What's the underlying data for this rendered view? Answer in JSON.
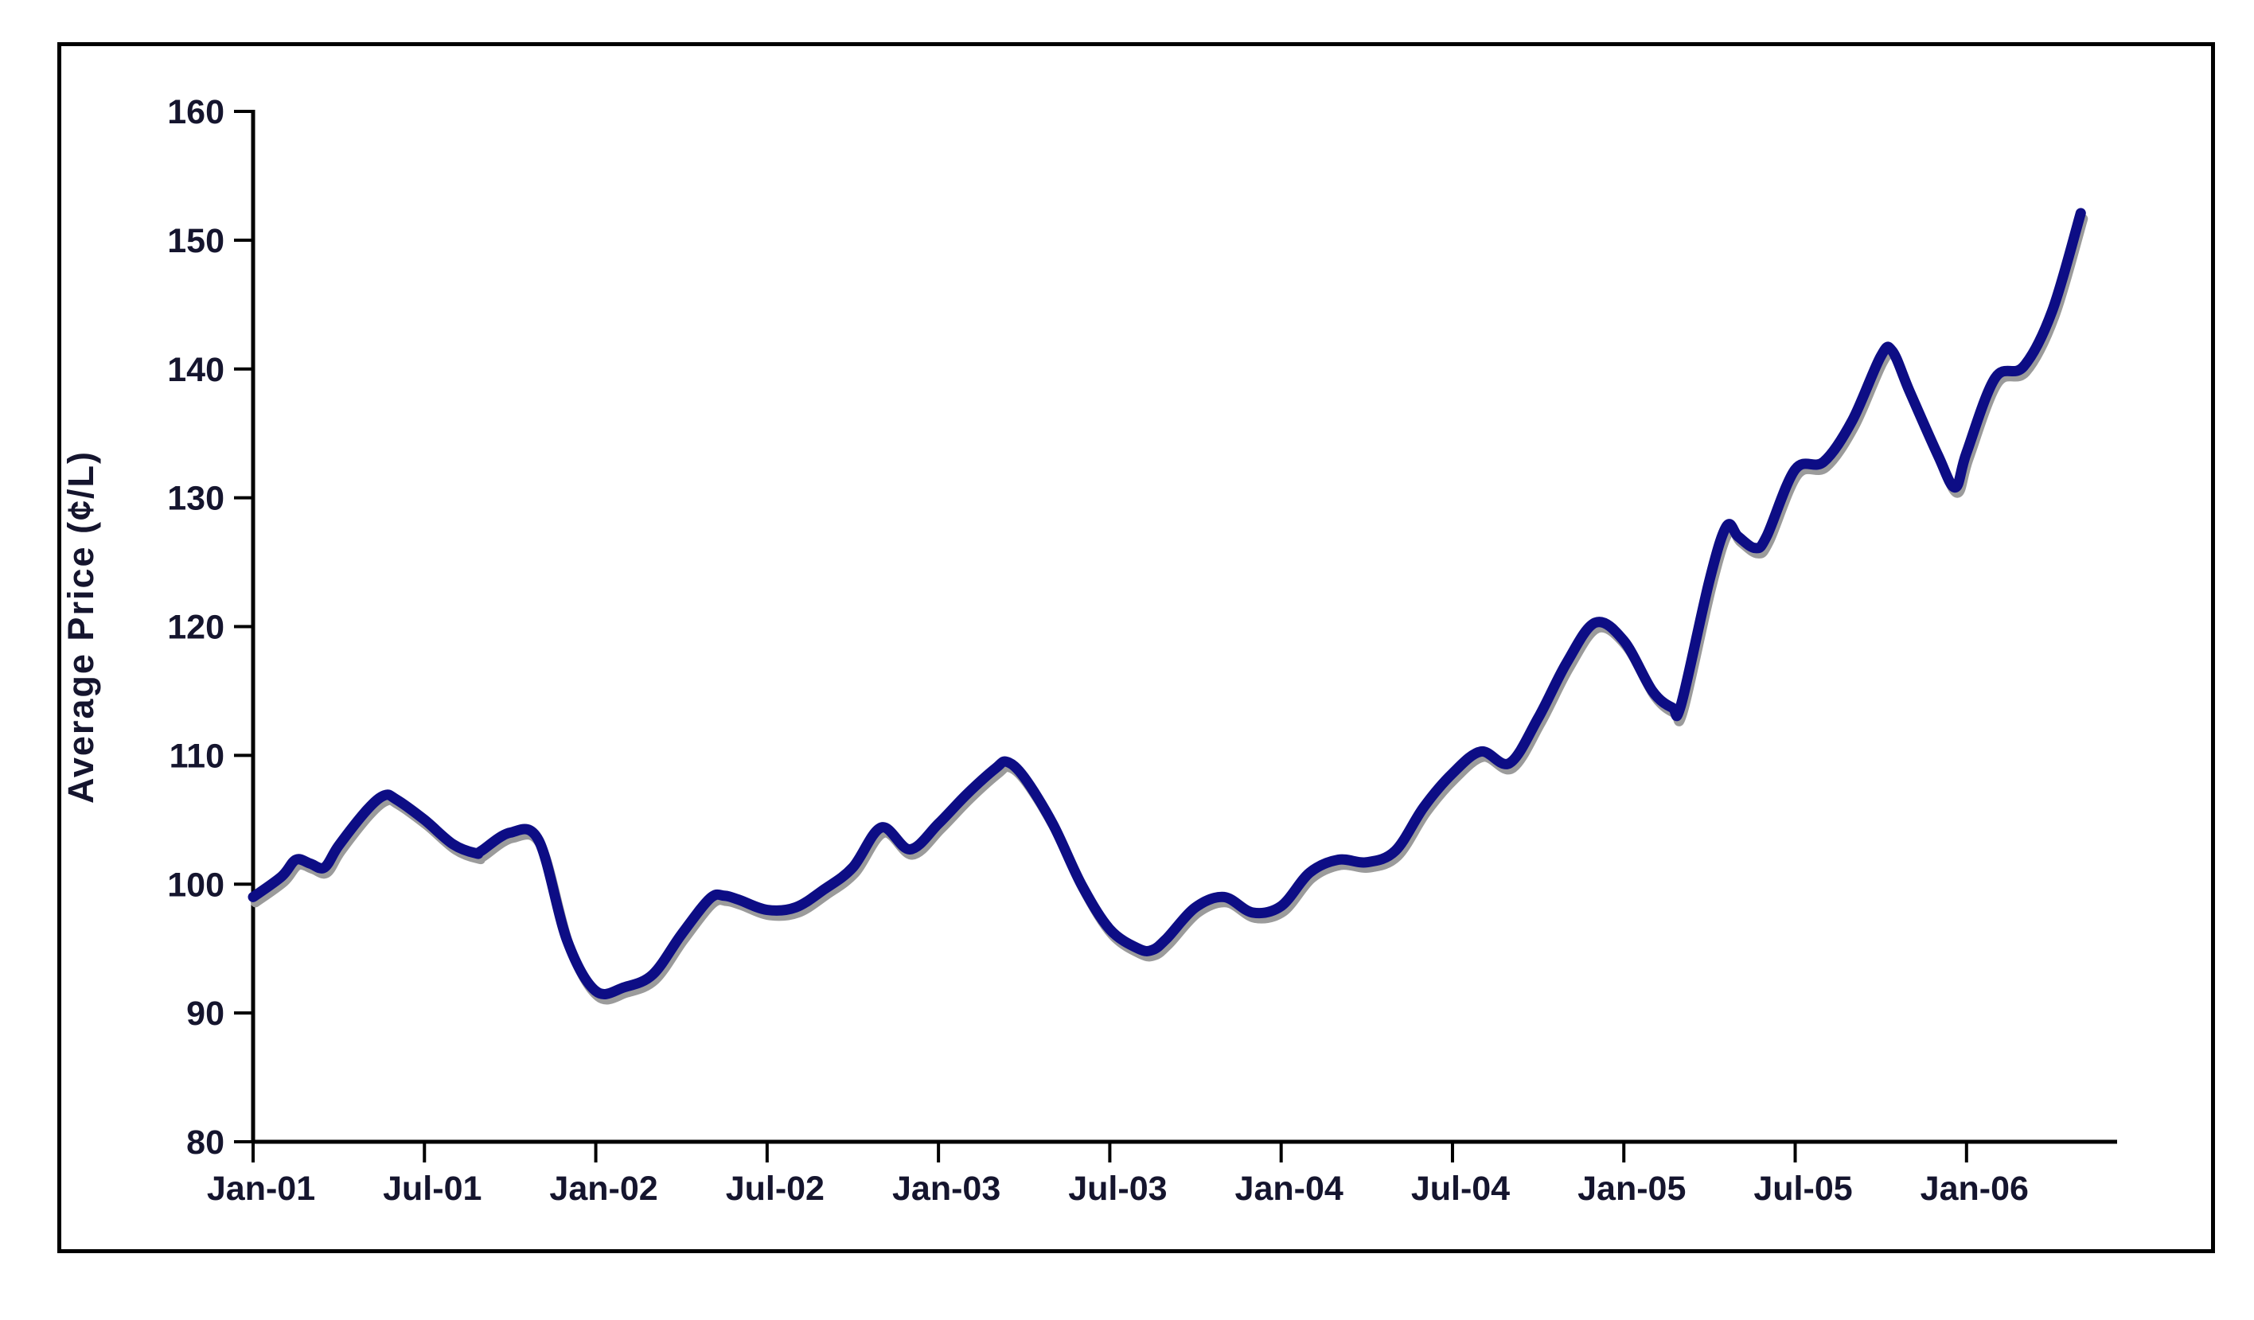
{
  "chart_data": {
    "type": "line",
    "title": "",
    "xlabel": "",
    "ylabel": "Average Price (¢/L)",
    "ylim": [
      80,
      160
    ],
    "y_ticks": [
      80,
      90,
      100,
      110,
      120,
      130,
      140,
      150,
      160
    ],
    "x_ticks": [
      {
        "month": 0,
        "label": "Jan-01"
      },
      {
        "month": 6,
        "label": "Jul-01"
      },
      {
        "month": 12,
        "label": "Jan-02"
      },
      {
        "month": 18,
        "label": "Jul-02"
      },
      {
        "month": 24,
        "label": "Jan-03"
      },
      {
        "month": 30,
        "label": "Jul-03"
      },
      {
        "month": 36,
        "label": "Jan-04"
      },
      {
        "month": 42,
        "label": "Jul-04"
      },
      {
        "month": 48,
        "label": "Jan-05"
      },
      {
        "month": 54,
        "label": "Jul-05"
      },
      {
        "month": 60,
        "label": "Jan-06"
      }
    ],
    "x_unit": "months since Jan-2001",
    "grid": false,
    "legend": "none",
    "series": [
      {
        "name": "Average Price (¢/L)",
        "color": "#0d0d85",
        "points": [
          [
            0,
            99.0
          ],
          [
            1,
            100.6
          ],
          [
            1.5,
            101.9
          ],
          [
            2,
            101.6
          ],
          [
            2.5,
            101.3
          ],
          [
            3,
            103.0
          ],
          [
            4,
            105.8
          ],
          [
            4.6,
            106.9
          ],
          [
            5,
            106.6
          ],
          [
            6,
            105.0
          ],
          [
            7,
            103.1
          ],
          [
            7.8,
            102.4
          ],
          [
            8,
            102.6
          ],
          [
            9,
            104.0
          ],
          [
            10,
            103.4
          ],
          [
            11,
            95.6
          ],
          [
            12,
            91.7
          ],
          [
            13,
            92.0
          ],
          [
            14,
            93.0
          ],
          [
            15,
            96.1
          ],
          [
            16,
            98.9
          ],
          [
            16.5,
            99.1
          ],
          [
            17,
            98.8
          ],
          [
            18,
            98.0
          ],
          [
            19,
            98.2
          ],
          [
            20,
            99.6
          ],
          [
            21,
            101.3
          ],
          [
            22,
            104.4
          ],
          [
            23,
            102.7
          ],
          [
            24,
            104.7
          ],
          [
            25,
            107.0
          ],
          [
            26,
            109.0
          ],
          [
            26.4,
            109.5
          ],
          [
            27,
            108.3
          ],
          [
            28,
            104.7
          ],
          [
            29,
            100.0
          ],
          [
            30,
            96.5
          ],
          [
            31,
            95.0
          ],
          [
            31.5,
            94.9
          ],
          [
            32,
            95.8
          ],
          [
            33,
            98.2
          ],
          [
            34,
            99.0
          ],
          [
            35,
            97.8
          ],
          [
            36,
            98.3
          ],
          [
            37,
            100.9
          ],
          [
            38,
            101.9
          ],
          [
            39,
            101.7
          ],
          [
            40,
            102.6
          ],
          [
            41,
            106.0
          ],
          [
            42,
            108.6
          ],
          [
            43,
            110.3
          ],
          [
            44,
            109.4
          ],
          [
            45,
            112.9
          ],
          [
            46,
            117.2
          ],
          [
            47,
            120.3
          ],
          [
            48,
            118.9
          ],
          [
            49,
            115.0
          ],
          [
            49.7,
            113.7
          ],
          [
            50,
            113.9
          ],
          [
            51,
            123.6
          ],
          [
            51.6,
            127.8
          ],
          [
            52,
            127.0
          ],
          [
            52.6,
            126.1
          ],
          [
            53,
            127.0
          ],
          [
            54,
            132.2
          ],
          [
            55,
            132.8
          ],
          [
            56,
            136.0
          ],
          [
            57,
            141.0
          ],
          [
            57.4,
            141.4
          ],
          [
            58,
            138.3
          ],
          [
            59,
            133.3
          ],
          [
            59.6,
            130.8
          ],
          [
            60,
            133.5
          ],
          [
            61,
            139.3
          ],
          [
            62,
            140.2
          ],
          [
            63,
            144.5
          ],
          [
            64,
            152.1
          ]
        ]
      }
    ]
  },
  "colors": {
    "line": "#0d0d85",
    "line_shadow": "#9b9b9b",
    "axis": "#000000",
    "frame": "#000000",
    "tick_text": "#15152e",
    "background": "#ffffff"
  }
}
